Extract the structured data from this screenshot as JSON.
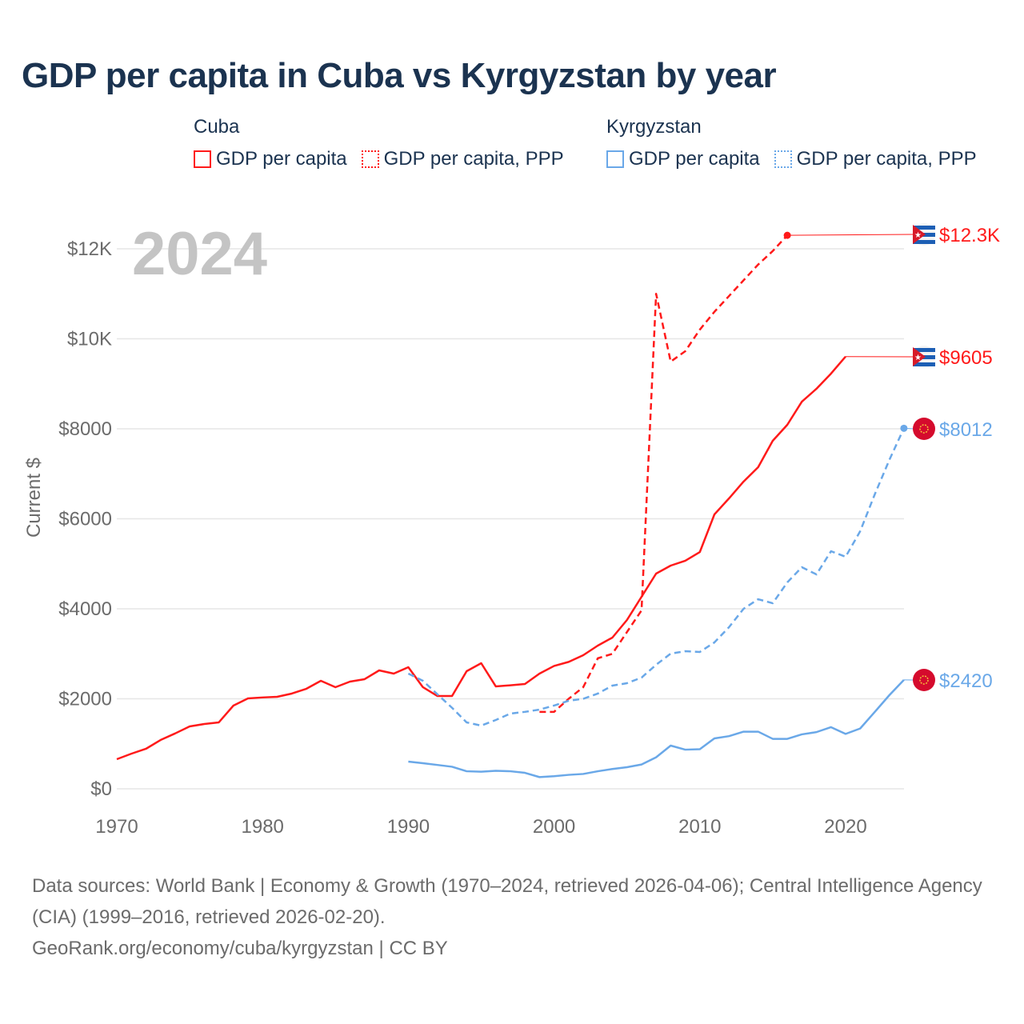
{
  "title": "GDP per capita in Cuba vs Kyrgyzstan by year",
  "legend": [
    {
      "country": "Cuba",
      "items": [
        {
          "label": "GDP per capita",
          "style": "solid"
        },
        {
          "label": "GDP per capita, PPP",
          "style": "dotted"
        }
      ],
      "color": "#ff1a1a"
    },
    {
      "country": "Kyrgyzstan",
      "items": [
        {
          "label": "GDP per capita",
          "style": "solid"
        },
        {
          "label": "GDP per capita, PPP",
          "style": "dotted"
        }
      ],
      "color": "#6aa8e8"
    }
  ],
  "source": {
    "line1": "Data sources: World Bank | Economy & Growth (1970–2024, retrieved 2026-04-06); Central Intelligence Agency (CIA) (1999–2016, retrieved 2026-02-20).",
    "line2": "GeoRank.org/economy/cuba/kyrgyzstan | CC BY"
  },
  "chart_data": {
    "type": "line",
    "title": "GDP per capita in Cuba vs Kyrgyzstan by year",
    "year_label": "2024",
    "xlabel": "",
    "ylabel": "Current $",
    "xlim": [
      1970,
      2024
    ],
    "ylim": [
      0,
      12500
    ],
    "x_ticks": [
      1970,
      1980,
      1990,
      2000,
      2010,
      2020
    ],
    "y_ticks": [
      {
        "v": 0,
        "label": "$0"
      },
      {
        "v": 2000,
        "label": "$2000"
      },
      {
        "v": 4000,
        "label": "$4000"
      },
      {
        "v": 6000,
        "label": "$6000"
      },
      {
        "v": 8000,
        "label": "$8000"
      },
      {
        "v": 10000,
        "label": "$10K"
      },
      {
        "v": 12000,
        "label": "$12K"
      }
    ],
    "grid": true,
    "series": [
      {
        "name": "Cuba GDP per capita",
        "color": "#ff1a1a",
        "dash": "solid",
        "end_label": "$9605",
        "end_value": 9605,
        "flag": "cuba",
        "x": [
          1970,
          1971,
          1972,
          1973,
          1974,
          1975,
          1976,
          1977,
          1978,
          1979,
          1980,
          1981,
          1982,
          1983,
          1984,
          1985,
          1986,
          1987,
          1988,
          1989,
          1990,
          1991,
          1992,
          1993,
          1994,
          1995,
          1996,
          1997,
          1998,
          1999,
          2000,
          2001,
          2002,
          2003,
          2004,
          2005,
          2006,
          2007,
          2008,
          2009,
          2010,
          2011,
          2012,
          2013,
          2014,
          2015,
          2016,
          2017,
          2018,
          2019,
          2020
        ],
        "y": [
          658,
          780,
          889,
          1084,
          1230,
          1387,
          1440,
          1476,
          1849,
          2009,
          2030,
          2044,
          2116,
          2222,
          2400,
          2258,
          2382,
          2436,
          2631,
          2560,
          2702,
          2258,
          2062,
          2062,
          2613,
          2791,
          2276,
          2300,
          2329,
          2560,
          2730,
          2820,
          2969,
          3182,
          3360,
          3751,
          4267,
          4782,
          4960,
          5067,
          5262,
          6098,
          6453,
          6827,
          7147,
          7733,
          8089,
          8604,
          8889,
          9227,
          9605
        ]
      },
      {
        "name": "Cuba GDP per capita, PPP",
        "color": "#ff1a1a",
        "dash": "dashed",
        "end_label": "$12.3K",
        "end_value": 12300,
        "flag": "cuba",
        "x": [
          1999,
          2000,
          2001,
          2002,
          2003,
          2004,
          2005,
          2006,
          2007,
          2008,
          2009,
          2010,
          2011,
          2012,
          2013,
          2014,
          2015,
          2016
        ],
        "y": [
          1710,
          1710,
          2000,
          2258,
          2900,
          3000,
          3484,
          3964,
          11000,
          9493,
          9724,
          10204,
          10600,
          10950,
          11300,
          11650,
          11950,
          12300
        ]
      },
      {
        "name": "Kyrgyzstan GDP per capita, PPP",
        "color": "#6aa8e8",
        "dash": "dashed",
        "end_label": "$8012",
        "end_value": 8012,
        "flag": "kyrgyzstan",
        "x": [
          1990,
          1991,
          1992,
          1993,
          1994,
          1995,
          1996,
          1997,
          1998,
          1999,
          2000,
          2001,
          2002,
          2003,
          2004,
          2005,
          2006,
          2007,
          2008,
          2009,
          2010,
          2011,
          2012,
          2013,
          2014,
          2015,
          2016,
          2017,
          2018,
          2019,
          2020,
          2021,
          2022,
          2023,
          2024
        ],
        "y": [
          2560,
          2400,
          2100,
          1800,
          1476,
          1404,
          1529,
          1671,
          1710,
          1760,
          1850,
          1956,
          2000,
          2116,
          2293,
          2347,
          2471,
          2756,
          3004,
          3058,
          3040,
          3253,
          3591,
          4000,
          4213,
          4124,
          4587,
          4924,
          4764,
          5280,
          5156,
          5724,
          6542,
          7307,
          8012
        ]
      },
      {
        "name": "Kyrgyzstan GDP per capita",
        "color": "#6aa8e8",
        "dash": "solid",
        "end_label": "$2420",
        "end_value": 2420,
        "flag": "kyrgyzstan",
        "x": [
          1990,
          1991,
          1992,
          1993,
          1994,
          1995,
          1996,
          1997,
          1998,
          1999,
          2000,
          2001,
          2002,
          2003,
          2004,
          2005,
          2006,
          2007,
          2008,
          2009,
          2010,
          2011,
          2012,
          2013,
          2014,
          2015,
          2016,
          2017,
          2018,
          2019,
          2020,
          2021,
          2022,
          2023,
          2024
        ],
        "y": [
          604,
          569,
          530,
          490,
          390,
          380,
          400,
          390,
          355,
          260,
          280,
          310,
          330,
          390,
          440,
          480,
          540,
          700,
          960,
          870,
          880,
          1120,
          1170,
          1270,
          1270,
          1110,
          1110,
          1210,
          1260,
          1369,
          1220,
          1340,
          1707,
          2080,
          2420
        ]
      }
    ]
  }
}
